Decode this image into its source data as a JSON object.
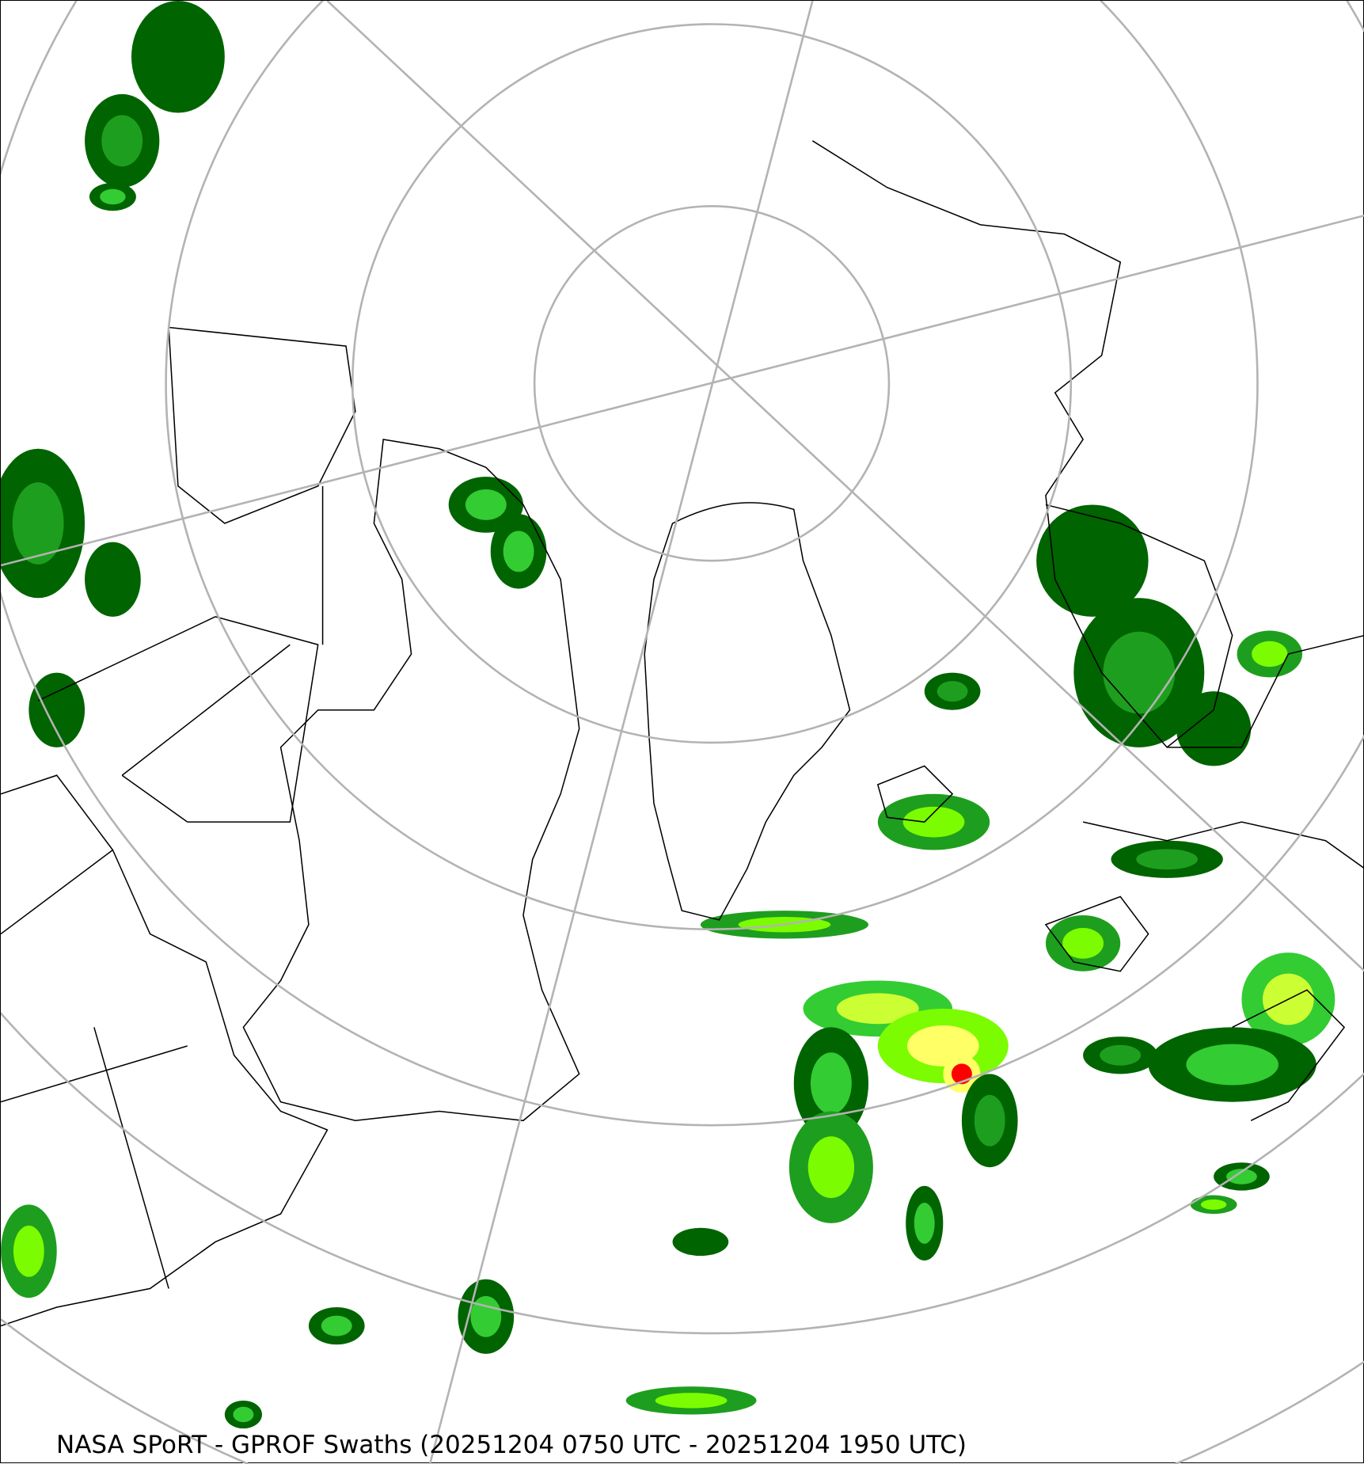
{
  "map": {
    "caption": "NASA SPoRT - GPROF Swaths (20251204 0750 UTC - 20251204 1950 UTC)",
    "projection": "north-polar-stereographic",
    "graticule_color": "#b3b3b3",
    "precip_colors": [
      "#006400",
      "#1e9e1e",
      "#33cc33",
      "#7cfc00",
      "#ccff33",
      "#ffff66",
      "#ffa500",
      "#ff0000"
    ]
  }
}
